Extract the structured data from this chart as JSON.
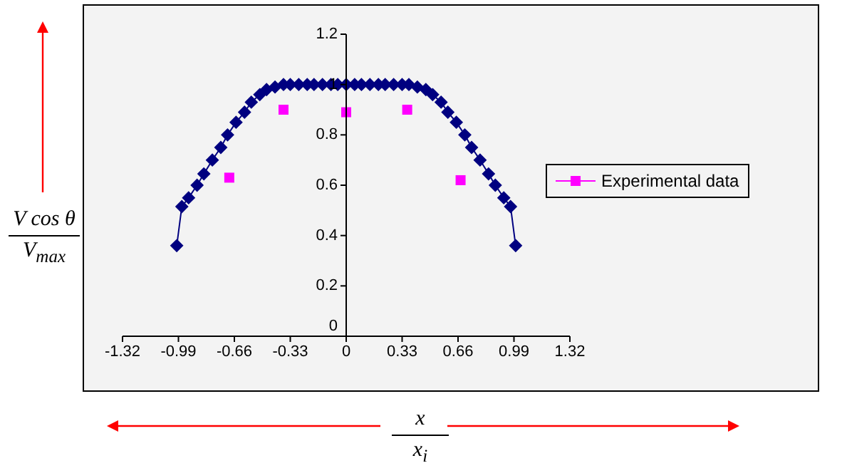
{
  "chart_data": {
    "type": "line",
    "xlabel": "x\nx$_{i}$",
    "ylabel": "V cos θ\nV$_{max}$",
    "xlim": [
      -1.32,
      1.32
    ],
    "xticks": [
      -1.32,
      -0.99,
      -0.66,
      -0.33,
      0,
      0.33,
      0.66,
      0.99,
      1.32
    ],
    "ylim": [
      0,
      1.2
    ],
    "yticks": [
      0,
      0.2,
      0.4,
      0.6,
      0.8,
      1,
      1.2
    ],
    "legend": "right",
    "series": [
      {
        "color": "#000080",
        "marker": "diamond",
        "x": [
          -1.0,
          -0.97,
          -0.93,
          -0.88,
          -0.84,
          -0.79,
          -0.74,
          -0.7,
          -0.65,
          -0.6,
          -0.56,
          -0.51,
          -0.47,
          -0.42,
          -0.37,
          -0.33,
          -0.28,
          -0.23,
          -0.19,
          -0.14,
          -0.09,
          -0.05,
          0,
          0.05,
          0.09,
          0.14,
          0.19,
          0.23,
          0.28,
          0.33,
          0.37,
          0.42,
          0.47,
          0.51,
          0.56,
          0.6,
          0.65,
          0.7,
          0.74,
          0.79,
          0.84,
          0.88,
          0.93,
          0.97,
          1.0
        ],
        "values": [
          0.36,
          0.515,
          0.55,
          0.6,
          0.645,
          0.7,
          0.75,
          0.8,
          0.85,
          0.89,
          0.93,
          0.96,
          0.98,
          0.99,
          1,
          1,
          1,
          1,
          1,
          1,
          1,
          1,
          1,
          1,
          1,
          1,
          1,
          1,
          1,
          1,
          1,
          0.99,
          0.98,
          0.96,
          0.93,
          0.89,
          0.85,
          0.8,
          0.75,
          0.7,
          0.645,
          0.6,
          0.55,
          0.515,
          0.36
        ]
      },
      {
        "type": "scatter",
        "name": "Experimental data",
        "color": "#ff00ff",
        "marker": "square",
        "x": [
          -0.69,
          -0.37,
          0,
          0.36,
          0.675
        ],
        "values": [
          0.63,
          0.9,
          0.89,
          0.9,
          0.62
        ]
      }
    ]
  }
}
